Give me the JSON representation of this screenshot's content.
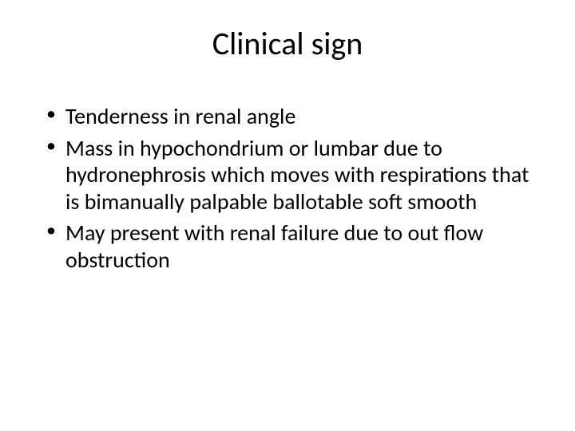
{
  "slide": {
    "title": "Clinical sign",
    "title_fontsize": 40,
    "title_color": "#000000",
    "background_color": "#ffffff",
    "bullets": [
      "Tenderness in renal angle",
      "Mass in hypochondrium or lumbar due to hydronephrosis which moves with respirations that is bimanually palpable ballotable soft smooth",
      "May present with renal failure due to out flow obstruction"
    ],
    "bullet_fontsize": 28,
    "bullet_color": "#000000",
    "bullet_marker": "•",
    "font_family": "Calibri"
  }
}
